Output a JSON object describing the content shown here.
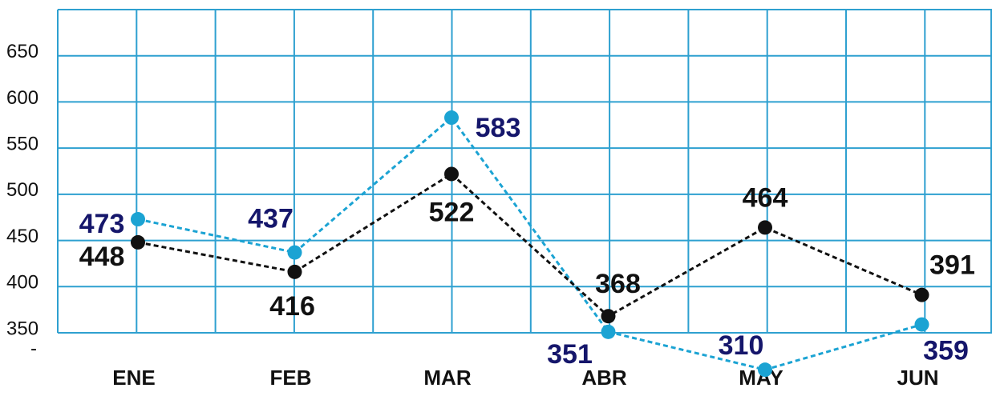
{
  "chart_data": {
    "type": "line",
    "categories": [
      "ENE",
      "FEB",
      "MAR",
      "ABR",
      "MAY",
      "JUN"
    ],
    "series": [
      {
        "color": "#1ba3d3",
        "label_color": "#15166b",
        "values": [
          473,
          437,
          583,
          351,
          310,
          359
        ]
      },
      {
        "color": "#111111",
        "label_color": "#111111",
        "values": [
          448,
          416,
          522,
          368,
          464,
          391
        ]
      }
    ],
    "ylim": [
      350,
      700
    ],
    "yticks": [
      350,
      400,
      450,
      500,
      550,
      600,
      650
    ],
    "y_axis_marker": "-",
    "grid": true,
    "grid_color": "#2ea0d0"
  }
}
